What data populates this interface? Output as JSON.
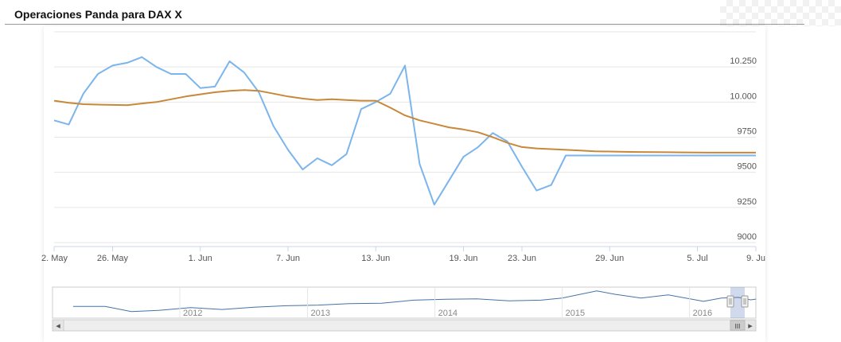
{
  "title": "Operaciones Panda para DAX X",
  "chart_data": {
    "type": "line",
    "title": "Operaciones Panda para DAX X",
    "x_tick_labels": [
      "2. May",
      "26. May",
      "1. Jun",
      "7. Jun",
      "13. Jun",
      "19. Jun",
      "23. Jun",
      "29. Jun",
      "5. Jul",
      "9. Ju"
    ],
    "x_tick_dates": [
      "2016-05-22",
      "2016-05-26",
      "2016-06-01",
      "2016-06-07",
      "2016-06-13",
      "2016-06-19",
      "2016-06-23",
      "2016-06-29",
      "2016-07-05",
      "2016-07-09"
    ],
    "xlim": [
      "2016-05-22",
      "2016-07-09"
    ],
    "y_ticks": [
      9000,
      9250,
      9500,
      9750,
      10000,
      10250
    ],
    "y_tick_labels": [
      "9000",
      "9250",
      "9500",
      "9750",
      "10.000",
      "10.250"
    ],
    "ylim": [
      9000,
      10500
    ],
    "grid": true,
    "legend": "none",
    "series": [
      {
        "color": "#7cb5ec",
        "x": [
          "2016-05-22",
          "2016-05-23",
          "2016-05-24",
          "2016-05-25",
          "2016-05-26",
          "2016-05-27",
          "2016-05-28",
          "2016-05-29",
          "2016-05-30",
          "2016-05-31",
          "2016-06-01",
          "2016-06-02",
          "2016-06-03",
          "2016-06-04",
          "2016-06-05",
          "2016-06-06",
          "2016-06-07",
          "2016-06-08",
          "2016-06-09",
          "2016-06-10",
          "2016-06-11",
          "2016-06-12",
          "2016-06-13",
          "2016-06-14",
          "2016-06-15",
          "2016-06-16",
          "2016-06-17",
          "2016-06-18",
          "2016-06-19",
          "2016-06-20",
          "2016-06-21",
          "2016-06-22",
          "2016-06-23",
          "2016-06-24",
          "2016-06-25",
          "2016-06-26",
          "2016-06-27",
          "2016-06-28",
          "2016-06-29",
          "2016-06-30",
          "2016-07-01",
          "2016-07-02",
          "2016-07-03",
          "2016-07-04",
          "2016-07-05",
          "2016-07-06",
          "2016-07-07",
          "2016-07-08",
          "2016-07-09"
        ],
        "values": [
          9870,
          9840,
          10060,
          10200,
          10260,
          10280,
          10320,
          10250,
          10200,
          10200,
          10100,
          10110,
          10290,
          10210,
          10070,
          9830,
          9660,
          9520,
          9600,
          9550,
          9630,
          9950,
          10000,
          10060,
          10260,
          9560,
          9270,
          9440,
          9610,
          9680,
          9780,
          9720,
          9540,
          9370,
          9410,
          9620,
          9620,
          9620,
          9620,
          9620,
          9620,
          9620,
          9620,
          9620,
          9620,
          9620,
          9620,
          9620,
          9620
        ]
      },
      {
        "color": "#c8883a",
        "x": [
          "2016-05-22",
          "2016-05-23",
          "2016-05-24",
          "2016-05-25",
          "2016-05-26",
          "2016-05-27",
          "2016-05-28",
          "2016-05-29",
          "2016-05-30",
          "2016-05-31",
          "2016-06-01",
          "2016-06-02",
          "2016-06-03",
          "2016-06-04",
          "2016-06-05",
          "2016-06-06",
          "2016-06-07",
          "2016-06-08",
          "2016-06-09",
          "2016-06-10",
          "2016-06-11",
          "2016-06-12",
          "2016-06-13",
          "2016-06-14",
          "2016-06-15",
          "2016-06-16",
          "2016-06-17",
          "2016-06-18",
          "2016-06-19",
          "2016-06-20",
          "2016-06-21",
          "2016-06-22",
          "2016-06-23",
          "2016-06-24",
          "2016-06-25",
          "2016-06-26",
          "2016-06-27",
          "2016-06-28",
          "2016-06-29",
          "2016-06-30",
          "2016-07-01",
          "2016-07-02",
          "2016-07-03",
          "2016-07-04",
          "2016-07-05",
          "2016-07-06",
          "2016-07-07",
          "2016-07-08",
          "2016-07-09"
        ],
        "values": [
          10010,
          9995,
          9985,
          9982,
          9980,
          9978,
          9990,
          10000,
          10020,
          10040,
          10055,
          10070,
          10080,
          10085,
          10080,
          10060,
          10040,
          10025,
          10015,
          10020,
          10015,
          10010,
          10010,
          9960,
          9905,
          9870,
          9845,
          9820,
          9805,
          9785,
          9750,
          9710,
          9680,
          9670,
          9665,
          9660,
          9655,
          9650,
          9648,
          9646,
          9645,
          9644,
          9643,
          9642,
          9641,
          9640,
          9640,
          9640,
          9640
        ]
      }
    ],
    "navigator": {
      "year_labels": [
        "2012",
        "2013",
        "2014",
        "2015",
        "2016"
      ],
      "xlim": [
        "2011-01-01",
        "2016-07-09"
      ],
      "series": {
        "x": [
          "2011-03-01",
          "2011-06-01",
          "2011-08-15",
          "2011-11-01",
          "2012-02-01",
          "2012-05-01",
          "2012-08-01",
          "2012-11-01",
          "2013-02-01",
          "2013-05-01",
          "2013-08-01",
          "2013-11-01",
          "2014-02-01",
          "2014-05-01",
          "2014-08-01",
          "2014-11-01",
          "2015-01-01",
          "2015-04-10",
          "2015-06-01",
          "2015-08-15",
          "2015-11-01",
          "2016-02-10",
          "2016-04-01",
          "2016-05-20",
          "2016-06-24",
          "2016-07-09"
        ],
        "values": [
          7300,
          7300,
          5600,
          6000,
          6900,
          6300,
          7000,
          7500,
          7700,
          8200,
          8300,
          9300,
          9600,
          9700,
          9100,
          9300,
          10000,
          12300,
          11200,
          10000,
          11000,
          8900,
          10000,
          10200,
          9400,
          9620
        ]
      }
    },
    "navigator_ylim": [
      4000,
      13000
    ],
    "navigator_selection": [
      "2016-05-22",
      "2016-07-09"
    ]
  },
  "scrollbar": {
    "handle_glyph": "III",
    "left_arrow": "◂",
    "right_arrow": "▸"
  }
}
